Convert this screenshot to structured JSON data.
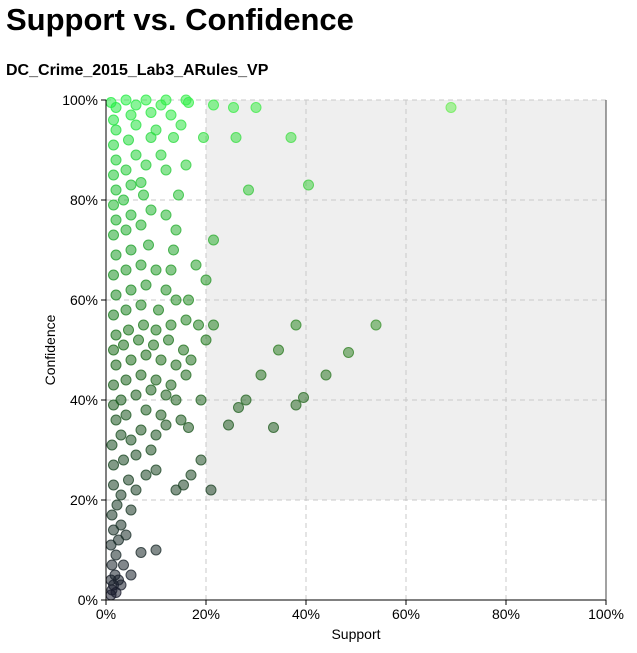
{
  "header": {
    "title": "Support vs. Confidence",
    "subtitle": "DC_Crime_2015_Lab3_ARules_VP"
  },
  "colors": {
    "plot_background": "#efefef",
    "grid": "#c8c8c8",
    "axis": "#000000",
    "point_low_confidence": "#1a1a2e",
    "point_mid_confidence": "#1a6b1a",
    "point_high_confidence": "#22ee44",
    "point_high_support": "#aaee66"
  },
  "chart_data": {
    "type": "scatter",
    "title": "Support vs. Confidence",
    "subtitle": "DC_Crime_2015_Lab3_ARules_VP",
    "xlabel": "Support",
    "ylabel": "Confidence",
    "xlim": [
      0,
      1
    ],
    "ylim": [
      0,
      1
    ],
    "x_ticks": [
      "0%",
      "20%",
      "40%",
      "60%",
      "80%",
      "100%"
    ],
    "y_ticks": [
      "0%",
      "20%",
      "40%",
      "60%",
      "80%",
      "100%"
    ],
    "grid": true,
    "shaded_region": {
      "x_from": 0.2,
      "y_from": 0.2
    },
    "points": [
      [
        0.01,
        0.01
      ],
      [
        0.012,
        0.02
      ],
      [
        0.015,
        0.03
      ],
      [
        0.02,
        0.015
      ],
      [
        0.01,
        0.04
      ],
      [
        0.018,
        0.05
      ],
      [
        0.025,
        0.04
      ],
      [
        0.03,
        0.03
      ],
      [
        0.05,
        0.05
      ],
      [
        0.012,
        0.07
      ],
      [
        0.02,
        0.09
      ],
      [
        0.035,
        0.07
      ],
      [
        0.01,
        0.11
      ],
      [
        0.025,
        0.12
      ],
      [
        0.07,
        0.095
      ],
      [
        0.1,
        0.1
      ],
      [
        0.015,
        0.14
      ],
      [
        0.03,
        0.15
      ],
      [
        0.04,
        0.13
      ],
      [
        0.012,
        0.17
      ],
      [
        0.022,
        0.19
      ],
      [
        0.05,
        0.18
      ],
      [
        0.03,
        0.21
      ],
      [
        0.06,
        0.22
      ],
      [
        0.015,
        0.23
      ],
      [
        0.045,
        0.24
      ],
      [
        0.08,
        0.25
      ],
      [
        0.1,
        0.26
      ],
      [
        0.015,
        0.27
      ],
      [
        0.035,
        0.28
      ],
      [
        0.06,
        0.29
      ],
      [
        0.09,
        0.3
      ],
      [
        0.14,
        0.22
      ],
      [
        0.155,
        0.23
      ],
      [
        0.17,
        0.25
      ],
      [
        0.19,
        0.28
      ],
      [
        0.21,
        0.22
      ],
      [
        0.012,
        0.31
      ],
      [
        0.03,
        0.33
      ],
      [
        0.05,
        0.32
      ],
      [
        0.07,
        0.34
      ],
      [
        0.1,
        0.33
      ],
      [
        0.12,
        0.35
      ],
      [
        0.02,
        0.36
      ],
      [
        0.04,
        0.37
      ],
      [
        0.08,
        0.38
      ],
      [
        0.11,
        0.37
      ],
      [
        0.15,
        0.36
      ],
      [
        0.165,
        0.345
      ],
      [
        0.245,
        0.35
      ],
      [
        0.335,
        0.345
      ],
      [
        0.015,
        0.39
      ],
      [
        0.03,
        0.4
      ],
      [
        0.06,
        0.41
      ],
      [
        0.09,
        0.42
      ],
      [
        0.12,
        0.41
      ],
      [
        0.14,
        0.4
      ],
      [
        0.19,
        0.4
      ],
      [
        0.265,
        0.385
      ],
      [
        0.28,
        0.4
      ],
      [
        0.38,
        0.39
      ],
      [
        0.395,
        0.405
      ],
      [
        0.015,
        0.43
      ],
      [
        0.04,
        0.44
      ],
      [
        0.07,
        0.45
      ],
      [
        0.1,
        0.44
      ],
      [
        0.13,
        0.43
      ],
      [
        0.16,
        0.45
      ],
      [
        0.31,
        0.45
      ],
      [
        0.44,
        0.45
      ],
      [
        0.02,
        0.47
      ],
      [
        0.05,
        0.48
      ],
      [
        0.08,
        0.49
      ],
      [
        0.11,
        0.48
      ],
      [
        0.14,
        0.47
      ],
      [
        0.17,
        0.48
      ],
      [
        0.485,
        0.495
      ],
      [
        0.015,
        0.5
      ],
      [
        0.035,
        0.51
      ],
      [
        0.065,
        0.52
      ],
      [
        0.095,
        0.51
      ],
      [
        0.125,
        0.52
      ],
      [
        0.155,
        0.5
      ],
      [
        0.2,
        0.52
      ],
      [
        0.345,
        0.5
      ],
      [
        0.02,
        0.53
      ],
      [
        0.045,
        0.54
      ],
      [
        0.075,
        0.55
      ],
      [
        0.1,
        0.54
      ],
      [
        0.13,
        0.55
      ],
      [
        0.16,
        0.56
      ],
      [
        0.185,
        0.55
      ],
      [
        0.215,
        0.55
      ],
      [
        0.38,
        0.55
      ],
      [
        0.54,
        0.55
      ],
      [
        0.015,
        0.57
      ],
      [
        0.04,
        0.58
      ],
      [
        0.07,
        0.59
      ],
      [
        0.105,
        0.58
      ],
      [
        0.14,
        0.6
      ],
      [
        0.02,
        0.61
      ],
      [
        0.05,
        0.62
      ],
      [
        0.08,
        0.63
      ],
      [
        0.12,
        0.62
      ],
      [
        0.165,
        0.6
      ],
      [
        0.015,
        0.65
      ],
      [
        0.04,
        0.66
      ],
      [
        0.07,
        0.67
      ],
      [
        0.1,
        0.66
      ],
      [
        0.13,
        0.66
      ],
      [
        0.18,
        0.67
      ],
      [
        0.2,
        0.64
      ],
      [
        0.02,
        0.69
      ],
      [
        0.05,
        0.7
      ],
      [
        0.085,
        0.71
      ],
      [
        0.135,
        0.7
      ],
      [
        0.215,
        0.72
      ],
      [
        0.015,
        0.73
      ],
      [
        0.04,
        0.74
      ],
      [
        0.07,
        0.75
      ],
      [
        0.14,
        0.74
      ],
      [
        0.02,
        0.76
      ],
      [
        0.05,
        0.77
      ],
      [
        0.09,
        0.78
      ],
      [
        0.12,
        0.77
      ],
      [
        0.015,
        0.79
      ],
      [
        0.035,
        0.8
      ],
      [
        0.075,
        0.81
      ],
      [
        0.145,
        0.81
      ],
      [
        0.02,
        0.82
      ],
      [
        0.05,
        0.83
      ],
      [
        0.07,
        0.835
      ],
      [
        0.285,
        0.82
      ],
      [
        0.405,
        0.83
      ],
      [
        0.015,
        0.85
      ],
      [
        0.04,
        0.86
      ],
      [
        0.08,
        0.87
      ],
      [
        0.12,
        0.86
      ],
      [
        0.16,
        0.87
      ],
      [
        0.02,
        0.88
      ],
      [
        0.06,
        0.89
      ],
      [
        0.11,
        0.89
      ],
      [
        0.015,
        0.91
      ],
      [
        0.045,
        0.92
      ],
      [
        0.09,
        0.925
      ],
      [
        0.135,
        0.925
      ],
      [
        0.195,
        0.925
      ],
      [
        0.26,
        0.925
      ],
      [
        0.37,
        0.925
      ],
      [
        0.02,
        0.94
      ],
      [
        0.06,
        0.95
      ],
      [
        0.1,
        0.94
      ],
      [
        0.15,
        0.95
      ],
      [
        0.015,
        0.96
      ],
      [
        0.05,
        0.97
      ],
      [
        0.09,
        0.975
      ],
      [
        0.13,
        0.97
      ],
      [
        0.02,
        0.985
      ],
      [
        0.06,
        0.99
      ],
      [
        0.11,
        0.99
      ],
      [
        0.165,
        0.995
      ],
      [
        0.215,
        0.99
      ],
      [
        0.255,
        0.985
      ],
      [
        0.3,
        0.985
      ],
      [
        0.69,
        0.985
      ],
      [
        0.01,
        0.995
      ],
      [
        0.04,
        1.0
      ],
      [
        0.08,
        1.0
      ],
      [
        0.12,
        1.0
      ],
      [
        0.16,
        1.0
      ]
    ]
  }
}
